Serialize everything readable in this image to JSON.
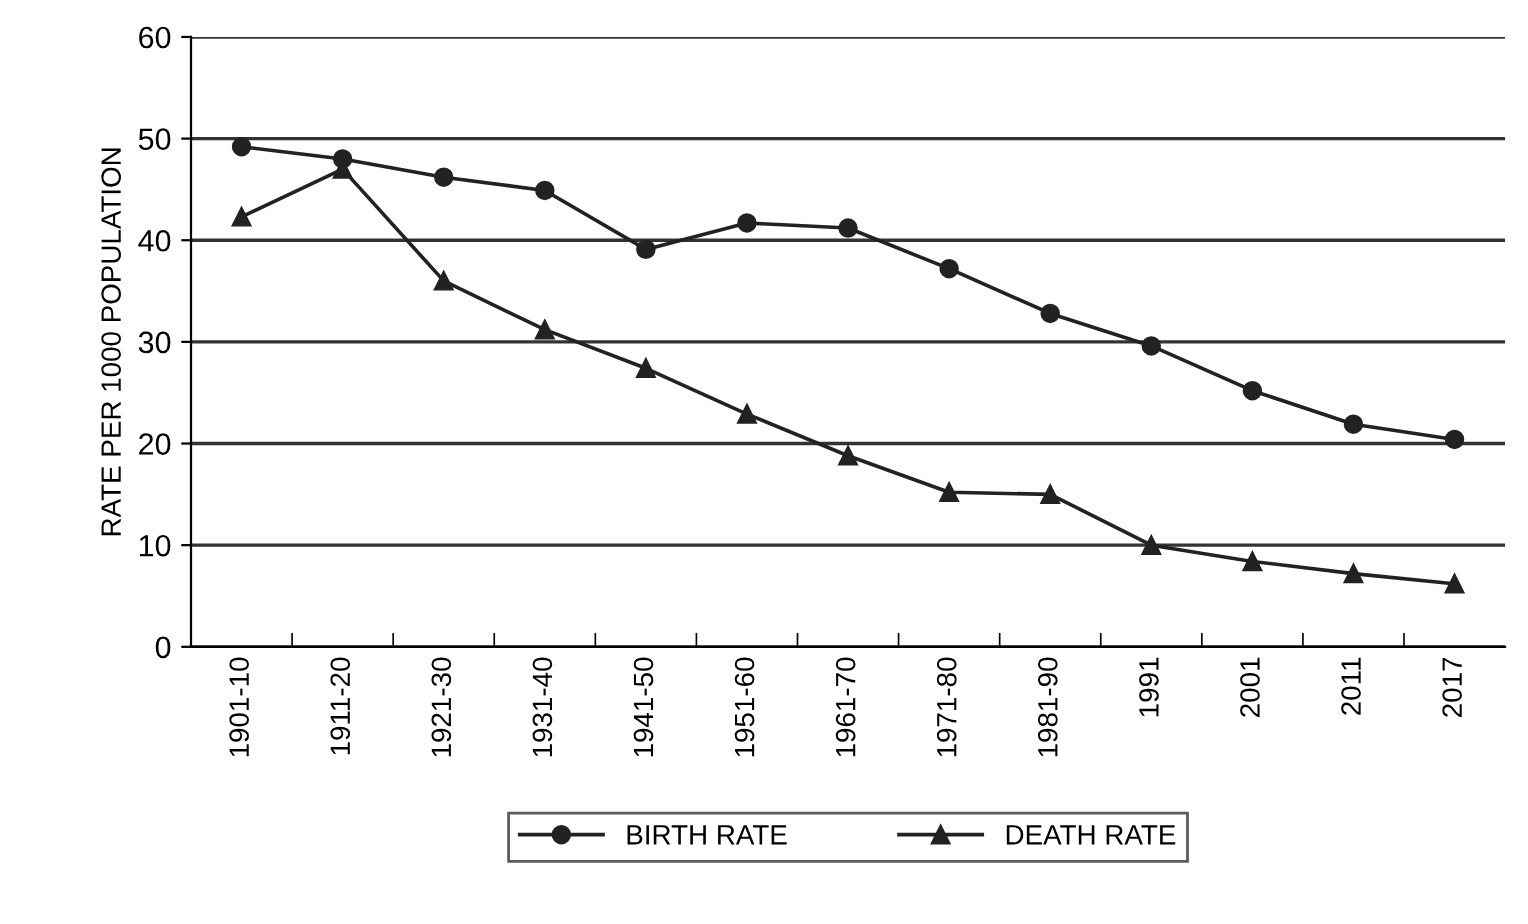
{
  "chart_data": {
    "type": "line",
    "ylabel": "RATE PER 1000 POPULATION",
    "categories": [
      "1901-10",
      "1911-20",
      "1921-30",
      "1931-40",
      "1941-50",
      "1951-60",
      "1961-70",
      "1971-80",
      "1981-90",
      "1991",
      "2001",
      "2011",
      "2017"
    ],
    "series": [
      {
        "name": "BIRTH RATE",
        "color": "#222222",
        "marker": "circle",
        "values": [
          49.2,
          48,
          46.2,
          44.9,
          39.1,
          41.7,
          41.2,
          37.2,
          32.8,
          29.6,
          25.2,
          21.9,
          20.4
        ]
      },
      {
        "name": "DEATH RATE",
        "color": "#222222",
        "marker": "triangle",
        "values": [
          42.3,
          47,
          36,
          31.2,
          27.4,
          22.9,
          18.8,
          15.2,
          15,
          10,
          8.4,
          7.2,
          6.2
        ]
      }
    ],
    "ylim": [
      0,
      60
    ],
    "yticks": [
      0,
      10,
      20,
      30,
      40,
      50,
      60
    ],
    "grid": "y",
    "legend": "bottom",
    "line_style": "solid"
  }
}
